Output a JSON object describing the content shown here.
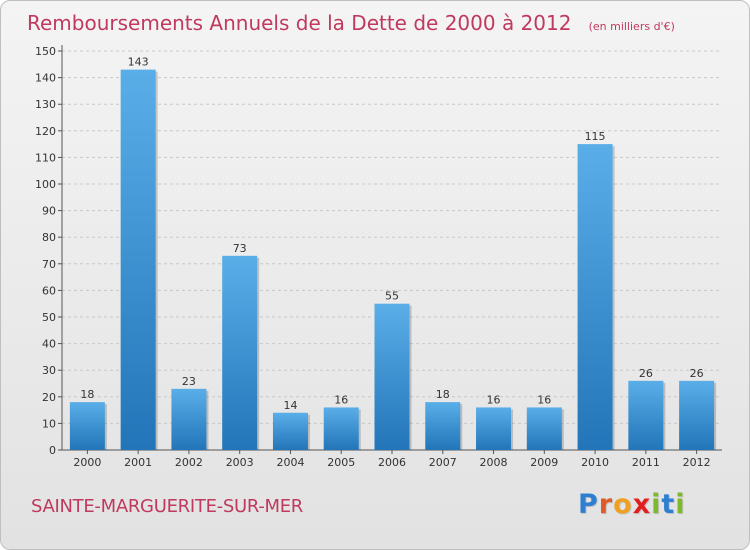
{
  "title": "Remboursements Annuels de la Dette de 2000 à 2012",
  "unit": "(en milliers d'€)",
  "commune": "SAINTE-MARGUERITE-SUR-MER",
  "logo": {
    "text": "Proxiti",
    "letter_colors": [
      "#2e7fd1",
      "#e05a28",
      "#f0a020",
      "#e0201f",
      "#7cba2a",
      "#2e7fd1",
      "#7cba2a"
    ]
  },
  "colors": {
    "bar_top": "#5aaee8",
    "bar_bottom": "#2275b8",
    "gridline": "#c8c8c8",
    "accent": "#c0395e"
  },
  "chart_data": {
    "type": "bar",
    "title": "Remboursements Annuels de la Dette de 2000 à 2012",
    "xlabel": "",
    "ylabel": "",
    "categories": [
      "2000",
      "2001",
      "2002",
      "2003",
      "2004",
      "2005",
      "2006",
      "2007",
      "2008",
      "2009",
      "2010",
      "2011",
      "2012"
    ],
    "values": [
      18,
      143,
      23,
      73,
      14,
      16,
      55,
      18,
      16,
      16,
      115,
      26,
      26
    ],
    "yticks": [
      0,
      10,
      20,
      30,
      40,
      50,
      60,
      70,
      80,
      90,
      100,
      110,
      120,
      130,
      140,
      150
    ],
    "ylim": [
      0,
      150
    ],
    "grid": true,
    "legend": "none"
  }
}
